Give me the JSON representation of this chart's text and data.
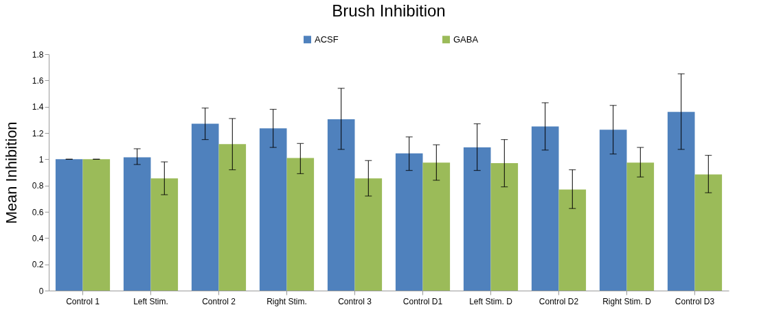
{
  "chart_data": {
    "type": "bar",
    "title": "Brush Inhibition",
    "ylabel": "Mean Inhibition",
    "categories": [
      "Control 1",
      "Left Stim.",
      "Control 2",
      "Right Stim.",
      "Control 3",
      "Control D1",
      "Left Stim. D",
      "Control D2",
      "Right Stim. D",
      "Control D3"
    ],
    "series": [
      {
        "name": "ACSF",
        "color": "#4f81bd",
        "values": [
          1.0,
          1.015,
          1.27,
          1.235,
          1.305,
          1.045,
          1.09,
          1.25,
          1.225,
          1.36
        ],
        "errors": [
          [
            1.0,
            1.0
          ],
          [
            0.96,
            1.08
          ],
          [
            1.15,
            1.39
          ],
          [
            1.09,
            1.38
          ],
          [
            1.075,
            1.54
          ],
          [
            0.915,
            1.17
          ],
          [
            0.915,
            1.27
          ],
          [
            1.07,
            1.43
          ],
          [
            1.04,
            1.41
          ],
          [
            1.075,
            1.65
          ]
        ]
      },
      {
        "name": "GABA",
        "color": "#9bbb59",
        "values": [
          1.0,
          0.855,
          1.115,
          1.01,
          0.855,
          0.975,
          0.97,
          0.77,
          0.975,
          0.885
        ],
        "errors": [
          [
            1.0,
            1.0
          ],
          [
            0.73,
            0.98
          ],
          [
            0.92,
            1.31
          ],
          [
            0.89,
            1.12
          ],
          [
            0.72,
            0.99
          ],
          [
            0.84,
            1.11
          ],
          [
            0.79,
            1.15
          ],
          [
            0.625,
            0.92
          ],
          [
            0.865,
            1.09
          ],
          [
            0.745,
            1.03
          ]
        ]
      }
    ],
    "ylim": [
      0,
      1.8
    ],
    "yticks": [
      0,
      0.2,
      0.4,
      0.6,
      0.8,
      1,
      1.2,
      1.4,
      1.6,
      1.8
    ],
    "grid": false,
    "legend": "top"
  }
}
